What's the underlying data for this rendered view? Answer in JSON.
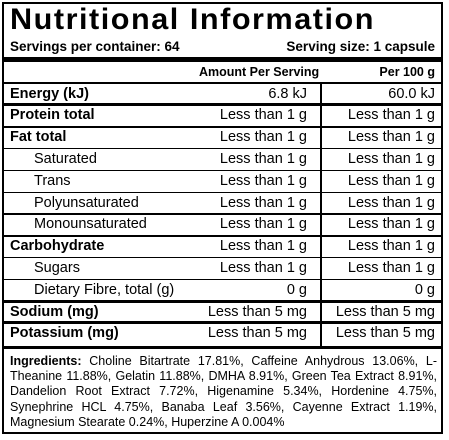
{
  "title": "Nutritional Information",
  "servings_per_container": "Servings per container: 64",
  "serving_size": "Serving size: 1 capsule",
  "columns": {
    "per_serving": "Amount Per Serving",
    "per_100g": "Per 100 g"
  },
  "rows": [
    {
      "label": "Energy (kJ)",
      "per_serving": "6.8 kJ",
      "per_100g": "60.0 kJ"
    },
    {
      "label": "Protein total",
      "per_serving": "Less than 1 g",
      "per_100g": "Less than 1 g"
    },
    {
      "label": "Fat total",
      "per_serving": "Less than 1 g",
      "per_100g": "Less than 1 g"
    },
    {
      "label": "Saturated",
      "per_serving": "Less than 1 g",
      "per_100g": "Less than 1 g"
    },
    {
      "label": "Trans",
      "per_serving": "Less than 1 g",
      "per_100g": "Less than 1 g"
    },
    {
      "label": "Polyunsaturated",
      "per_serving": "Less than 1 g",
      "per_100g": "Less than 1 g"
    },
    {
      "label": "Monounsaturated",
      "per_serving": "Less than 1 g",
      "per_100g": "Less than 1 g"
    },
    {
      "label": "Carbohydrate",
      "per_serving": "Less than 1 g",
      "per_100g": "Less than 1 g"
    },
    {
      "label": "Sugars",
      "per_serving": "Less than 1 g",
      "per_100g": "Less than 1 g"
    },
    {
      "label": "Dietary Fibre, total (g)",
      "per_serving": "0 g",
      "per_100g": "0 g"
    },
    {
      "label": "Sodium (mg)",
      "per_serving": "Less than 5 mg",
      "per_100g": "Less than 5 mg"
    },
    {
      "label": "Potassium (mg)",
      "per_serving": "Less than 5 mg",
      "per_100g": "Less than 5 mg"
    }
  ],
  "ingredients": {
    "label": "Ingredients:",
    "text": " Choline Bitartrate 17.81%, Caffeine Anhydrous 13.06%, L-Theanine 11.88%, Gelatin 11.88%, DMHA 8.91%, Green Tea Extract 8.91%, Dandelion Root Extract 7.72%, Higenamine 5.34%, Hordenine 4.75%, Synephrine HCL 4.75%, Banaba Leaf 3.56%, Cayenne Extract 1.19%, Magnesium Stearate 0.24%, Huperzine A 0.004%"
  }
}
